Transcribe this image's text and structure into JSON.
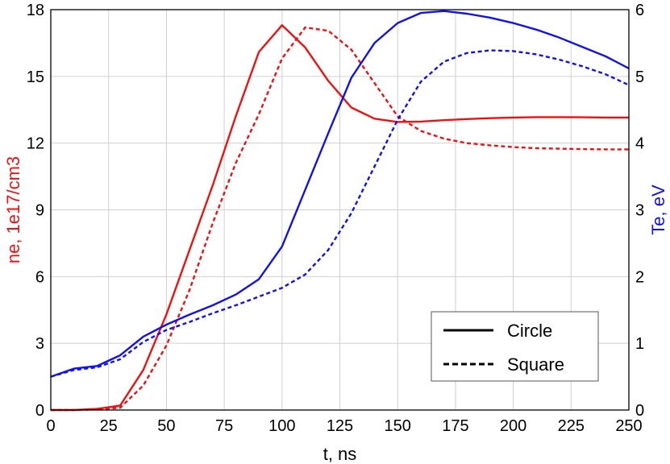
{
  "chart_data": {
    "type": "line",
    "xlabel": "t, ns",
    "ylabel_left": "ne, 1e17/cm3",
    "ylabel_right": "Te, eV",
    "xlim": [
      0,
      250
    ],
    "ylim_left": [
      0,
      18
    ],
    "ylim_right": [
      0,
      6
    ],
    "xticks": [
      0,
      25,
      50,
      75,
      100,
      125,
      150,
      175,
      200,
      225,
      250
    ],
    "yticks_left": [
      0,
      3,
      6,
      9,
      12,
      15,
      18
    ],
    "yticks_right": [
      0,
      1,
      2,
      3,
      4,
      5,
      6
    ],
    "grid": true,
    "legend_position": "bottom-right",
    "legend": [
      {
        "label": "Circle",
        "style": "solid"
      },
      {
        "label": "Square",
        "style": "dashed"
      }
    ],
    "colors": {
      "ne": "#ee1111",
      "te": "#1111ee"
    },
    "series": [
      {
        "quantity": "ne",
        "axis": "left",
        "style": "solid",
        "x": [
          0,
          10,
          20,
          30,
          40,
          50,
          60,
          70,
          80,
          90,
          100,
          110,
          120,
          130,
          140,
          150,
          160,
          170,
          180,
          190,
          200,
          210,
          220,
          230,
          240,
          250
        ],
        "y": [
          0,
          0,
          0.05,
          0.2,
          1.8,
          4.3,
          7.2,
          10.1,
          13.2,
          16.1,
          17.3,
          16.3,
          14.8,
          13.6,
          13.1,
          12.95,
          12.97,
          13.03,
          13.08,
          13.12,
          13.15,
          13.17,
          13.17,
          13.16,
          13.15,
          13.15
        ]
      },
      {
        "quantity": "ne",
        "axis": "left",
        "style": "dashed",
        "x": [
          0,
          10,
          20,
          30,
          40,
          50,
          60,
          70,
          80,
          90,
          100,
          110,
          120,
          130,
          140,
          150,
          160,
          170,
          180,
          190,
          200,
          210,
          220,
          230,
          240,
          250
        ],
        "y": [
          0,
          0,
          0.03,
          0.1,
          1.1,
          2.9,
          5.4,
          8.4,
          11.1,
          13.3,
          15.8,
          17.2,
          17.05,
          16.2,
          14.7,
          13.2,
          12.55,
          12.2,
          12.0,
          11.9,
          11.82,
          11.77,
          11.75,
          11.73,
          11.72,
          11.72
        ]
      },
      {
        "quantity": "Te",
        "axis": "right",
        "style": "solid",
        "x": [
          0,
          10,
          20,
          30,
          40,
          50,
          60,
          70,
          80,
          90,
          100,
          110,
          120,
          130,
          140,
          150,
          160,
          170,
          180,
          190,
          200,
          210,
          220,
          230,
          240,
          250
        ],
        "y": [
          0.5,
          0.62,
          0.66,
          0.82,
          1.1,
          1.28,
          1.43,
          1.57,
          1.73,
          1.96,
          2.45,
          3.3,
          4.15,
          4.98,
          5.5,
          5.8,
          5.95,
          5.98,
          5.94,
          5.88,
          5.8,
          5.7,
          5.58,
          5.44,
          5.3,
          5.12
        ]
      },
      {
        "quantity": "Te",
        "axis": "right",
        "style": "dashed",
        "x": [
          0,
          10,
          20,
          30,
          40,
          50,
          60,
          70,
          80,
          90,
          100,
          110,
          120,
          130,
          140,
          150,
          160,
          170,
          180,
          190,
          200,
          210,
          220,
          230,
          240,
          250
        ],
        "y": [
          0.5,
          0.6,
          0.64,
          0.76,
          1.02,
          1.2,
          1.32,
          1.45,
          1.57,
          1.7,
          1.83,
          2.03,
          2.4,
          2.95,
          3.65,
          4.35,
          4.92,
          5.22,
          5.35,
          5.39,
          5.38,
          5.33,
          5.25,
          5.15,
          5.03,
          4.87
        ]
      }
    ]
  }
}
